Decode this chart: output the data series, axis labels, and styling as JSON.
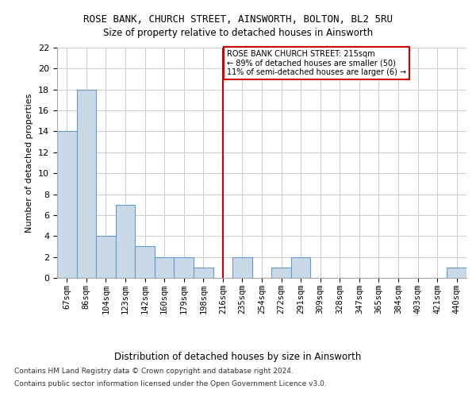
{
  "title1": "ROSE BANK, CHURCH STREET, AINSWORTH, BOLTON, BL2 5RU",
  "title2": "Size of property relative to detached houses in Ainsworth",
  "xlabel": "Distribution of detached houses by size in Ainsworth",
  "ylabel": "Number of detached properties",
  "categories": [
    "67sqm",
    "86sqm",
    "104sqm",
    "123sqm",
    "142sqm",
    "160sqm",
    "179sqm",
    "198sqm",
    "216sqm",
    "235sqm",
    "254sqm",
    "272sqm",
    "291sqm",
    "309sqm",
    "328sqm",
    "347sqm",
    "365sqm",
    "384sqm",
    "403sqm",
    "421sqm",
    "440sqm"
  ],
  "values": [
    14,
    18,
    4,
    7,
    3,
    2,
    2,
    1,
    0,
    2,
    0,
    1,
    2,
    0,
    0,
    0,
    0,
    0,
    0,
    0,
    1
  ],
  "bar_color": "#c9d9e8",
  "bar_edge_color": "#6699cc",
  "vline_index": 8,
  "vline_color": "#cc0000",
  "annotation_box_color": "#cc0000",
  "annotation_text": "ROSE BANK CHURCH STREET: 215sqm\n← 89% of detached houses are smaller (50)\n11% of semi-detached houses are larger (6) →",
  "ylim": [
    0,
    22
  ],
  "yticks": [
    0,
    2,
    4,
    6,
    8,
    10,
    12,
    14,
    16,
    18,
    20,
    22
  ],
  "footnote1": "Contains HM Land Registry data © Crown copyright and database right 2024.",
  "footnote2": "Contains public sector information licensed under the Open Government Licence v3.0.",
  "bg_color": "#ffffff",
  "grid_color": "#cccccc"
}
